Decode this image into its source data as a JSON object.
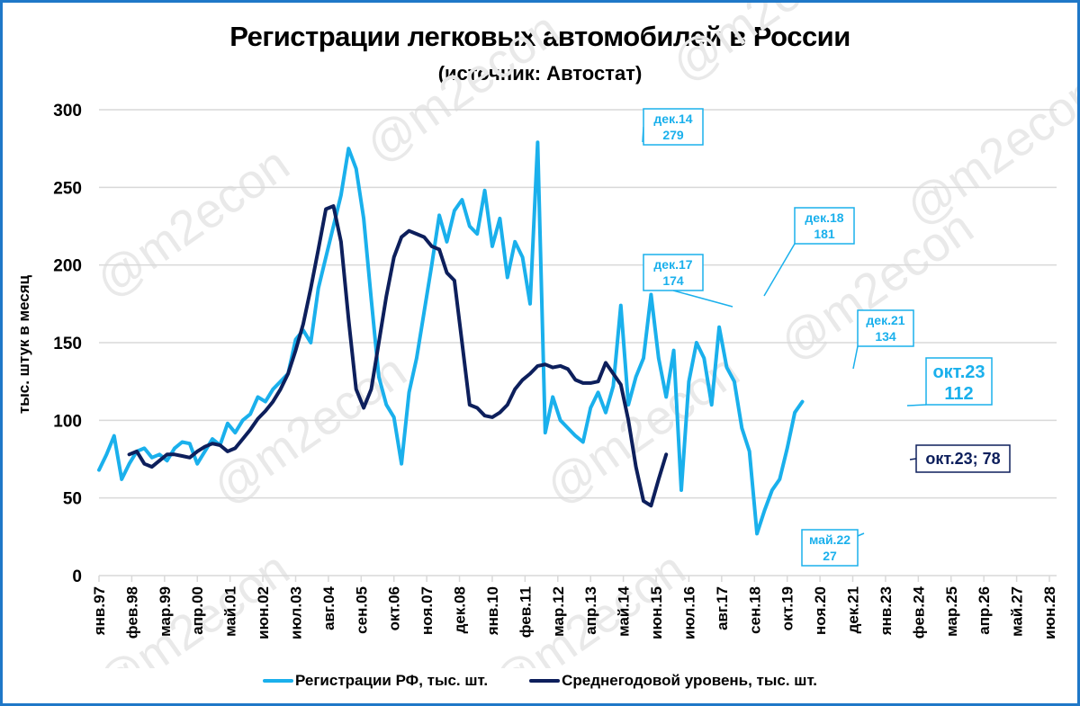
{
  "title": "Регистрации легковых автомобилей в России",
  "subtitle": "(источник: Автостат)",
  "colors": {
    "registrations": "#1ab0ec",
    "annual_avg": "#0d1f5c",
    "frame": "#1f78c8",
    "grid": "#d9d9d9"
  },
  "watermark": "@m2econ",
  "legend": [
    {
      "label": "Регистрации РФ, тыс. шт.",
      "color": "#1ab0ec"
    },
    {
      "label": "Среднегодовой уровень, тыс. шт.",
      "color": "#0d1f5c"
    }
  ],
  "chart_data": {
    "type": "line",
    "title": "Регистрации легковых автомобилей в России",
    "subtitle": "(источник: Автостат)",
    "xlabel": "",
    "ylabel": "тыс. штук в месяц",
    "ylim": [
      0,
      300
    ],
    "yticks": [
      0,
      50,
      100,
      150,
      200,
      250,
      300
    ],
    "grid": true,
    "legend_position": "bottom",
    "x_tick_labels": [
      "янв.97",
      "фев.98",
      "мар.99",
      "апр.00",
      "май.01",
      "июн.02",
      "июл.03",
      "авг.04",
      "сен.05",
      "окт.06",
      "ноя.07",
      "дек.08",
      "янв.10",
      "фев.11",
      "мар.12",
      "апр.13",
      "май.14",
      "июн.15",
      "июл.16",
      "авг.17",
      "сен.18",
      "окт.19",
      "ноя.20",
      "дек.21",
      "янв.23",
      "фев.24",
      "мар.25",
      "апр.26",
      "май.27",
      "июн.28"
    ],
    "x_start": "янв.97",
    "x_step_months": 3,
    "series": [
      {
        "name": "Регистрации РФ, тыс. шт.",
        "values": [
          68,
          78,
          90,
          62,
          72,
          80,
          82,
          76,
          78,
          74,
          82,
          86,
          85,
          72,
          80,
          88,
          84,
          98,
          92,
          100,
          104,
          115,
          112,
          120,
          125,
          130,
          152,
          158,
          150,
          185,
          205,
          225,
          245,
          275,
          262,
          230,
          178,
          128,
          110,
          102,
          72,
          118,
          140,
          170,
          200,
          232,
          215,
          235,
          242,
          225,
          220,
          248,
          212,
          230,
          192,
          215,
          205,
          175,
          279,
          92,
          115,
          100,
          95,
          90,
          86,
          108,
          118,
          105,
          122,
          174,
          110,
          128,
          140,
          181,
          140,
          115,
          145,
          55,
          125,
          150,
          140,
          110,
          160,
          134,
          125,
          95,
          80,
          27,
          42,
          55,
          62,
          82,
          105,
          112
        ]
      },
      {
        "name": "Среднегодовой уровень, тыс. шт.",
        "start_index": 4,
        "values": [
          78,
          80,
          72,
          70,
          74,
          78,
          78,
          77,
          76,
          80,
          83,
          85,
          84,
          80,
          82,
          88,
          94,
          101,
          106,
          112,
          120,
          130,
          145,
          162,
          185,
          210,
          236,
          238,
          215,
          165,
          120,
          108,
          120,
          150,
          180,
          205,
          218,
          222,
          220,
          218,
          212,
          210,
          195,
          190,
          150,
          110,
          108,
          103,
          102,
          105,
          110,
          120,
          126,
          130,
          135,
          136,
          134,
          135,
          133,
          126,
          124,
          124,
          125,
          137,
          130,
          123,
          100,
          70,
          48,
          45,
          62,
          78
        ]
      }
    ],
    "annotations": [
      {
        "series": "Регистрации РФ, тыс. шт.",
        "label": "дек.14",
        "value": 279
      },
      {
        "series": "Регистрации РФ, тыс. шт.",
        "label": "дек.17",
        "value": 174
      },
      {
        "series": "Регистрации РФ, тыс. шт.",
        "label": "дек.18",
        "value": 181
      },
      {
        "series": "Регистрации РФ, тыс. шт.",
        "label": "дек.21",
        "value": 134
      },
      {
        "series": "Регистрации РФ, тыс. шт.",
        "label": "май.22",
        "value": 27
      },
      {
        "series": "Регистрации РФ, тыс. шт.",
        "label": "окт.23",
        "value": 112
      },
      {
        "series": "Среднегодовой уровень, тыс. шт.",
        "label": "окт.23; 78",
        "value": 78
      }
    ]
  }
}
